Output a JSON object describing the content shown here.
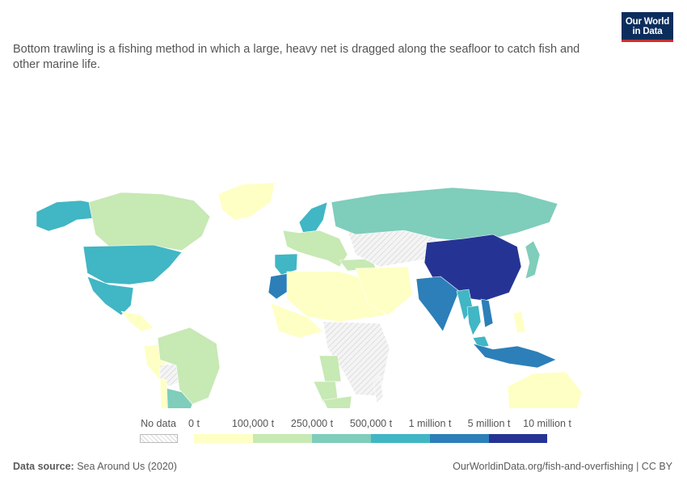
{
  "subtitle": "Bottom trawling is a fishing method in which a large, heavy net is dragged along the seafloor to catch fish and other marine life.",
  "logo": {
    "line1": "Our World",
    "line2": "in Data",
    "bg_color": "#0c2d5c",
    "accent_color": "#c9302c"
  },
  "legend": {
    "no_data_label": "No data",
    "bins": [
      {
        "label": "0 t",
        "color": "#feffc4"
      },
      {
        "label": "100,000 t",
        "color": "#c7e9b4"
      },
      {
        "label": "250,000 t",
        "color": "#7fcdbb"
      },
      {
        "label": "500,000 t",
        "color": "#41b6c4"
      },
      {
        "label": "1 million t",
        "color": "#2c7fb8"
      },
      {
        "label": "5 million t",
        "color": "#253494"
      },
      {
        "label": "10 million t",
        "color": ""
      }
    ]
  },
  "regions": [
    {
      "name": "China",
      "bin": 5
    },
    {
      "name": "India",
      "bin": 4
    },
    {
      "name": "Indonesia",
      "bin": 4
    },
    {
      "name": "Morocco",
      "bin": 4
    },
    {
      "name": "Vietnam",
      "bin": 4
    },
    {
      "name": "United States",
      "bin": 3
    },
    {
      "name": "Mexico",
      "bin": 3
    },
    {
      "name": "Spain",
      "bin": 3
    },
    {
      "name": "Myanmar",
      "bin": 3
    },
    {
      "name": "Thailand",
      "bin": 3
    },
    {
      "name": "Malaysia",
      "bin": 3
    },
    {
      "name": "Alaska",
      "bin": 3
    },
    {
      "name": "Norway",
      "bin": 3
    },
    {
      "name": "Russia",
      "bin": 2
    },
    {
      "name": "Argentina",
      "bin": 2
    },
    {
      "name": "Japan",
      "bin": 2
    },
    {
      "name": "Canada",
      "bin": 1
    },
    {
      "name": "Brazil",
      "bin": 1
    },
    {
      "name": "Angola",
      "bin": 1
    },
    {
      "name": "South Africa",
      "bin": 1
    },
    {
      "name": "Namibia",
      "bin": 1
    },
    {
      "name": "Turkey",
      "bin": 1
    },
    {
      "name": "Australia",
      "bin": 0
    },
    {
      "name": "Greenland",
      "bin": 0
    },
    {
      "name": "North Africa",
      "bin": 0
    },
    {
      "name": "West Africa",
      "bin": 0
    },
    {
      "name": "Middle East",
      "bin": 0
    },
    {
      "name": "Chile",
      "bin": 0
    },
    {
      "name": "Peru",
      "bin": 0
    },
    {
      "name": "Kazakhstan",
      "bin": -1
    },
    {
      "name": "Central Africa",
      "bin": -1
    },
    {
      "name": "Bolivia",
      "bin": -1
    }
  ],
  "footer": {
    "source_label": "Data source:",
    "source_value": "Sea Around Us (2020)",
    "right": "OurWorldinData.org/fish-and-overfishing | CC BY"
  }
}
